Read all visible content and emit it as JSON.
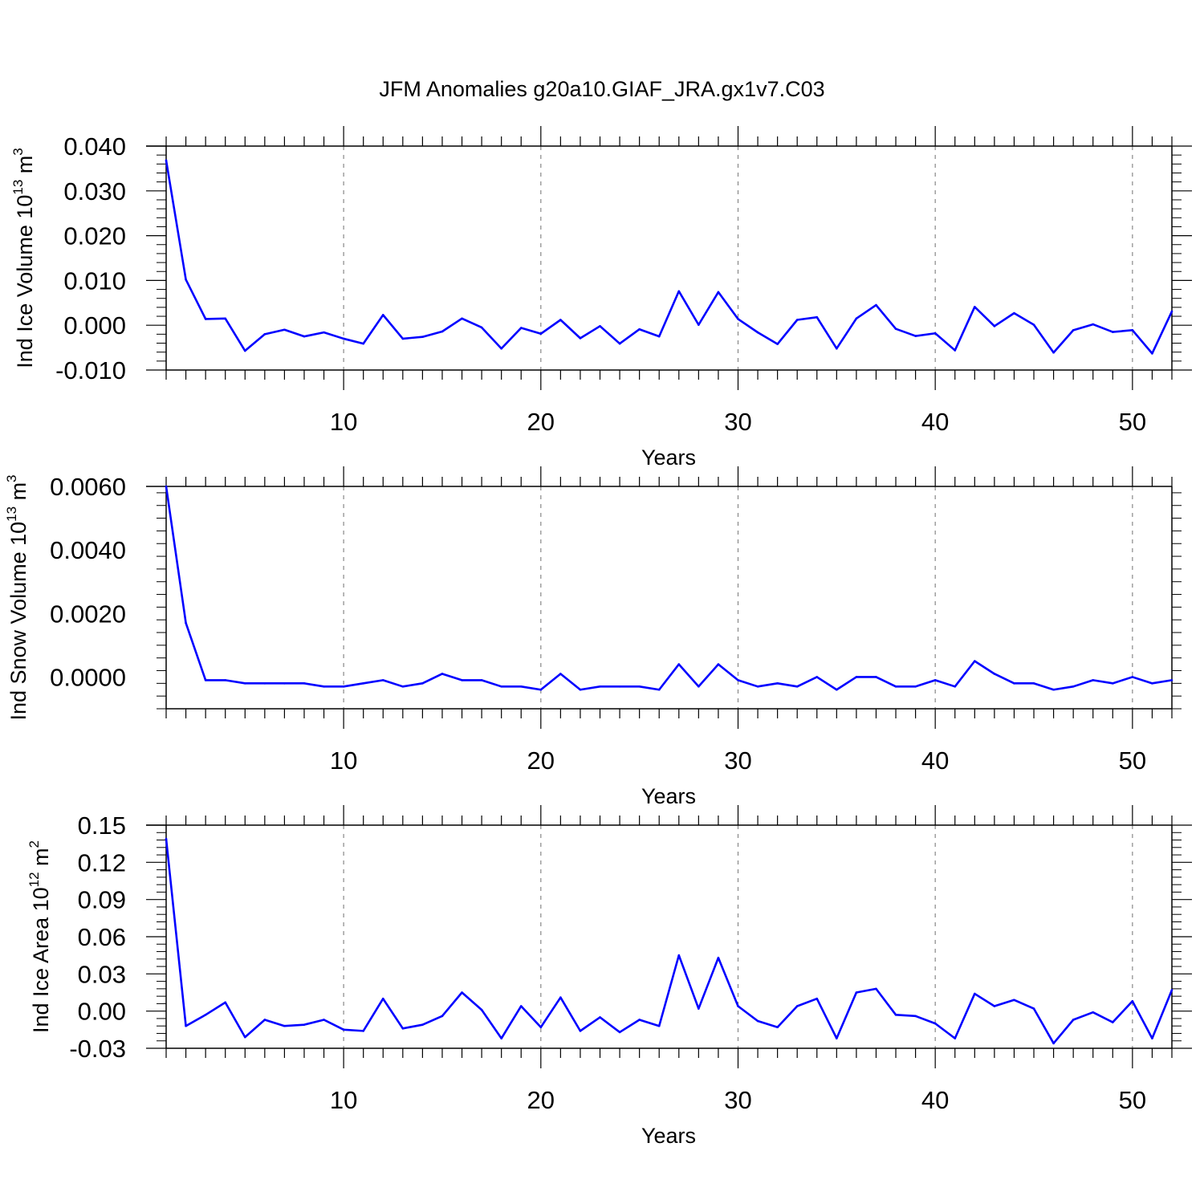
{
  "title": "JFM Anomalies g20a10.GIAF_JRA.gx1v7.C03",
  "colors": {
    "series": "#0000ff",
    "axis": "#000000",
    "grid": "#888888"
  },
  "chart_data": [
    {
      "type": "line",
      "xlabel": "Years",
      "ylabel_main": "Ind Ice Volume 10",
      "ylabel_exp": "13",
      "ylabel_unit": " m",
      "ylabel_unit_exp": "3",
      "xlim": [
        1,
        52
      ],
      "ylim": [
        -0.01,
        0.04
      ],
      "x_ticks": [
        10,
        20,
        30,
        40,
        50
      ],
      "x_tick_labels": [
        "10",
        "20",
        "30",
        "40",
        "50"
      ],
      "y_ticks": [
        -0.01,
        0.0,
        0.01,
        0.02,
        0.03,
        0.04
      ],
      "y_tick_labels": [
        "-0.010",
        "0.000",
        "0.010",
        "0.020",
        "0.030",
        "0.040"
      ],
      "grid": "vertical dashed at major x ticks",
      "x": [
        1,
        2,
        3,
        4,
        5,
        6,
        7,
        8,
        9,
        10,
        11,
        12,
        13,
        14,
        15,
        16,
        17,
        18,
        19,
        20,
        21,
        22,
        23,
        24,
        25,
        26,
        27,
        28,
        29,
        30,
        31,
        32,
        33,
        34,
        35,
        36,
        37,
        38,
        39,
        40,
        41,
        42,
        43,
        44,
        45,
        46,
        47,
        48,
        49,
        50,
        51,
        52
      ],
      "values": [
        0.0368,
        0.0102,
        0.0014,
        0.0015,
        -0.0057,
        -0.002,
        -0.001,
        -0.0025,
        -0.0016,
        -0.003,
        -0.0041,
        0.0023,
        -0.003,
        -0.0026,
        -0.0014,
        0.0015,
        -0.0005,
        -0.0052,
        -0.0006,
        -0.0019,
        0.0012,
        -0.0029,
        -0.0002,
        -0.0041,
        -0.0009,
        -0.0025,
        0.0076,
        0.0001,
        0.0074,
        0.0014,
        -0.0016,
        -0.0042,
        0.0012,
        0.0018,
        -0.0052,
        0.0015,
        0.0045,
        -0.0008,
        -0.0024,
        -0.0018,
        -0.0056,
        0.0041,
        -0.0002,
        0.0027,
        0.0001,
        -0.0061,
        -0.0011,
        0.0002,
        -0.0015,
        -0.0011,
        -0.0063,
        0.0031
      ]
    },
    {
      "type": "line",
      "xlabel": "Years",
      "ylabel_main": "Ind Snow Volume 10",
      "ylabel_exp": "13",
      "ylabel_unit": " m",
      "ylabel_unit_exp": "3",
      "xlim": [
        1,
        52
      ],
      "ylim": [
        -0.001,
        0.006
      ],
      "x_ticks": [
        10,
        20,
        30,
        40,
        50
      ],
      "x_tick_labels": [
        "10",
        "20",
        "30",
        "40",
        "50"
      ],
      "y_ticks": [
        0.0,
        0.002,
        0.004,
        0.006
      ],
      "y_tick_labels": [
        "0.0000",
        "0.0020",
        "0.0040",
        "0.0060"
      ],
      "grid": "vertical dashed at major x ticks",
      "x": [
        1,
        2,
        3,
        4,
        5,
        6,
        7,
        8,
        9,
        10,
        11,
        12,
        13,
        14,
        15,
        16,
        17,
        18,
        19,
        20,
        21,
        22,
        23,
        24,
        25,
        26,
        27,
        28,
        29,
        30,
        31,
        32,
        33,
        34,
        35,
        36,
        37,
        38,
        39,
        40,
        41,
        42,
        43,
        44,
        45,
        46,
        47,
        48,
        49,
        50,
        51,
        52
      ],
      "values": [
        0.006,
        0.0017,
        -0.0001,
        -0.0001,
        -0.0002,
        -0.0002,
        -0.0002,
        -0.0002,
        -0.0003,
        -0.0003,
        -0.0002,
        -0.0001,
        -0.0003,
        -0.0002,
        0.0001,
        -0.0001,
        -0.0001,
        -0.0003,
        -0.0003,
        -0.0004,
        0.0001,
        -0.0004,
        -0.0003,
        -0.0003,
        -0.0003,
        -0.0004,
        0.0004,
        -0.0003,
        0.0004,
        -0.0001,
        -0.0003,
        -0.0002,
        -0.0003,
        0.0,
        -0.0004,
        0.0,
        0.0,
        -0.0003,
        -0.0003,
        -0.0001,
        -0.0003,
        0.0005,
        0.0001,
        -0.0002,
        -0.0002,
        -0.0004,
        -0.0003,
        -0.0001,
        -0.0002,
        0.0,
        -0.0002,
        -0.0001
      ]
    },
    {
      "type": "line",
      "xlabel": "Years",
      "ylabel_main": "Ind Ice Area 10",
      "ylabel_exp": "12",
      "ylabel_unit": " m",
      "ylabel_unit_exp": "2",
      "xlim": [
        1,
        52
      ],
      "ylim": [
        -0.03,
        0.15
      ],
      "x_ticks": [
        10,
        20,
        30,
        40,
        50
      ],
      "x_tick_labels": [
        "10",
        "20",
        "30",
        "40",
        "50"
      ],
      "y_ticks": [
        -0.03,
        0.0,
        0.03,
        0.06,
        0.09,
        0.12,
        0.15
      ],
      "y_tick_labels": [
        "-0.03",
        "0.00",
        "0.03",
        "0.06",
        "0.09",
        "0.12",
        "0.15"
      ],
      "grid": "vertical dashed at major x ticks",
      "x": [
        1,
        2,
        3,
        4,
        5,
        6,
        7,
        8,
        9,
        10,
        11,
        12,
        13,
        14,
        15,
        16,
        17,
        18,
        19,
        20,
        21,
        22,
        23,
        24,
        25,
        26,
        27,
        28,
        29,
        30,
        31,
        32,
        33,
        34,
        35,
        36,
        37,
        38,
        39,
        40,
        41,
        42,
        43,
        44,
        45,
        46,
        47,
        48,
        49,
        50,
        51,
        52
      ],
      "values": [
        0.139,
        -0.012,
        -0.003,
        0.007,
        -0.021,
        -0.007,
        -0.012,
        -0.011,
        -0.007,
        -0.015,
        -0.016,
        0.01,
        -0.014,
        -0.011,
        -0.004,
        0.015,
        0.001,
        -0.022,
        0.004,
        -0.013,
        0.011,
        -0.016,
        -0.005,
        -0.017,
        -0.007,
        -0.012,
        0.045,
        0.002,
        0.043,
        0.004,
        -0.008,
        -0.013,
        0.004,
        0.01,
        -0.022,
        0.015,
        0.018,
        -0.003,
        -0.004,
        -0.01,
        -0.022,
        0.014,
        0.004,
        0.009,
        0.002,
        -0.026,
        -0.007,
        -0.001,
        -0.009,
        0.008,
        -0.022,
        0.017
      ]
    }
  ]
}
